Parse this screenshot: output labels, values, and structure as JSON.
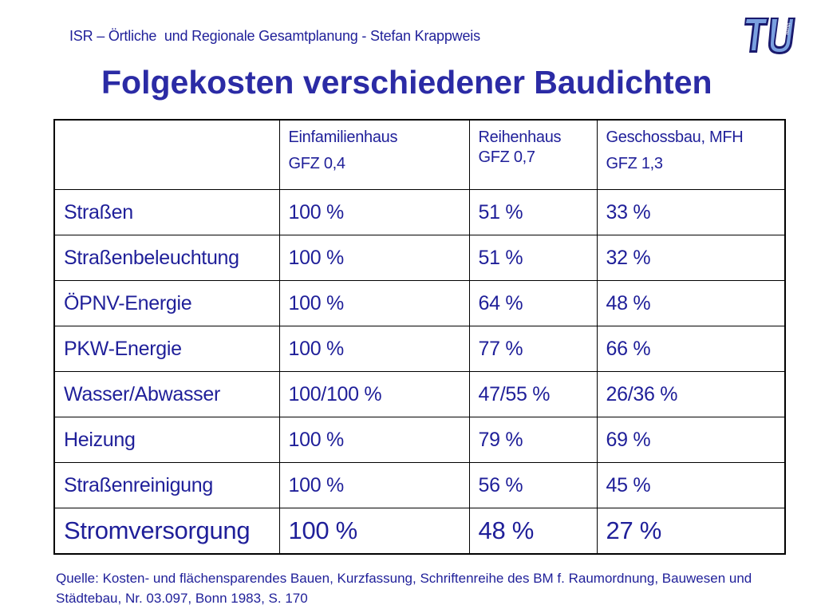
{
  "header": {
    "text": "ISR – Örtliche  und Regionale Gesamtplanung - Stefan Krappweis"
  },
  "logo": {
    "icon": "tu-berlin-logo-icon",
    "colors": {
      "dark": "#1a1a6e",
      "light": "#6f8fd4"
    }
  },
  "title": "Folgekosten verschiedener Baudichten",
  "table": {
    "columns": [
      {
        "label": "",
        "sub": ""
      },
      {
        "label": "Einfamilienhaus",
        "sub": "GFZ 0,4"
      },
      {
        "label": "Reihenhaus",
        "sub": "GFZ 0,7"
      },
      {
        "label": "Geschossbau, MFH",
        "sub": "GFZ 1,3"
      }
    ],
    "rows": [
      {
        "name": "Straßen",
        "values": [
          "100 %",
          "51 %",
          "33 %"
        ]
      },
      {
        "name": "Straßenbeleuchtung",
        "values": [
          "100 %",
          "51 %",
          "32 %"
        ]
      },
      {
        "name": "ÖPNV-Energie",
        "values": [
          "100 %",
          "64 %",
          "48 %"
        ]
      },
      {
        "name": "PKW-Energie",
        "values": [
          "100 %",
          "77 %",
          "66 %"
        ]
      },
      {
        "name": "Wasser/Abwasser",
        "values": [
          "100/100 %",
          "47/55 %",
          "26/36 %"
        ]
      },
      {
        "name": "Heizung",
        "values": [
          "100 %",
          "79 %",
          "69 %"
        ]
      },
      {
        "name": "Straßenreinigung",
        "values": [
          "100 %",
          "56 %",
          "45 %"
        ]
      },
      {
        "name": "Stromversorgung",
        "values": [
          "100 %",
          "48 %",
          "27 %"
        ]
      }
    ]
  },
  "source": "Quelle: Kosten- und flächensparendes Bauen, Kurzfassung, Schriftenreihe des BM f. Raumordnung, Bauwesen und Städtebau, Nr. 03.097, Bonn 1983, S. 170",
  "colors": {
    "text": "#1f1f99",
    "title": "#2b2ba5",
    "border": "#000000"
  }
}
